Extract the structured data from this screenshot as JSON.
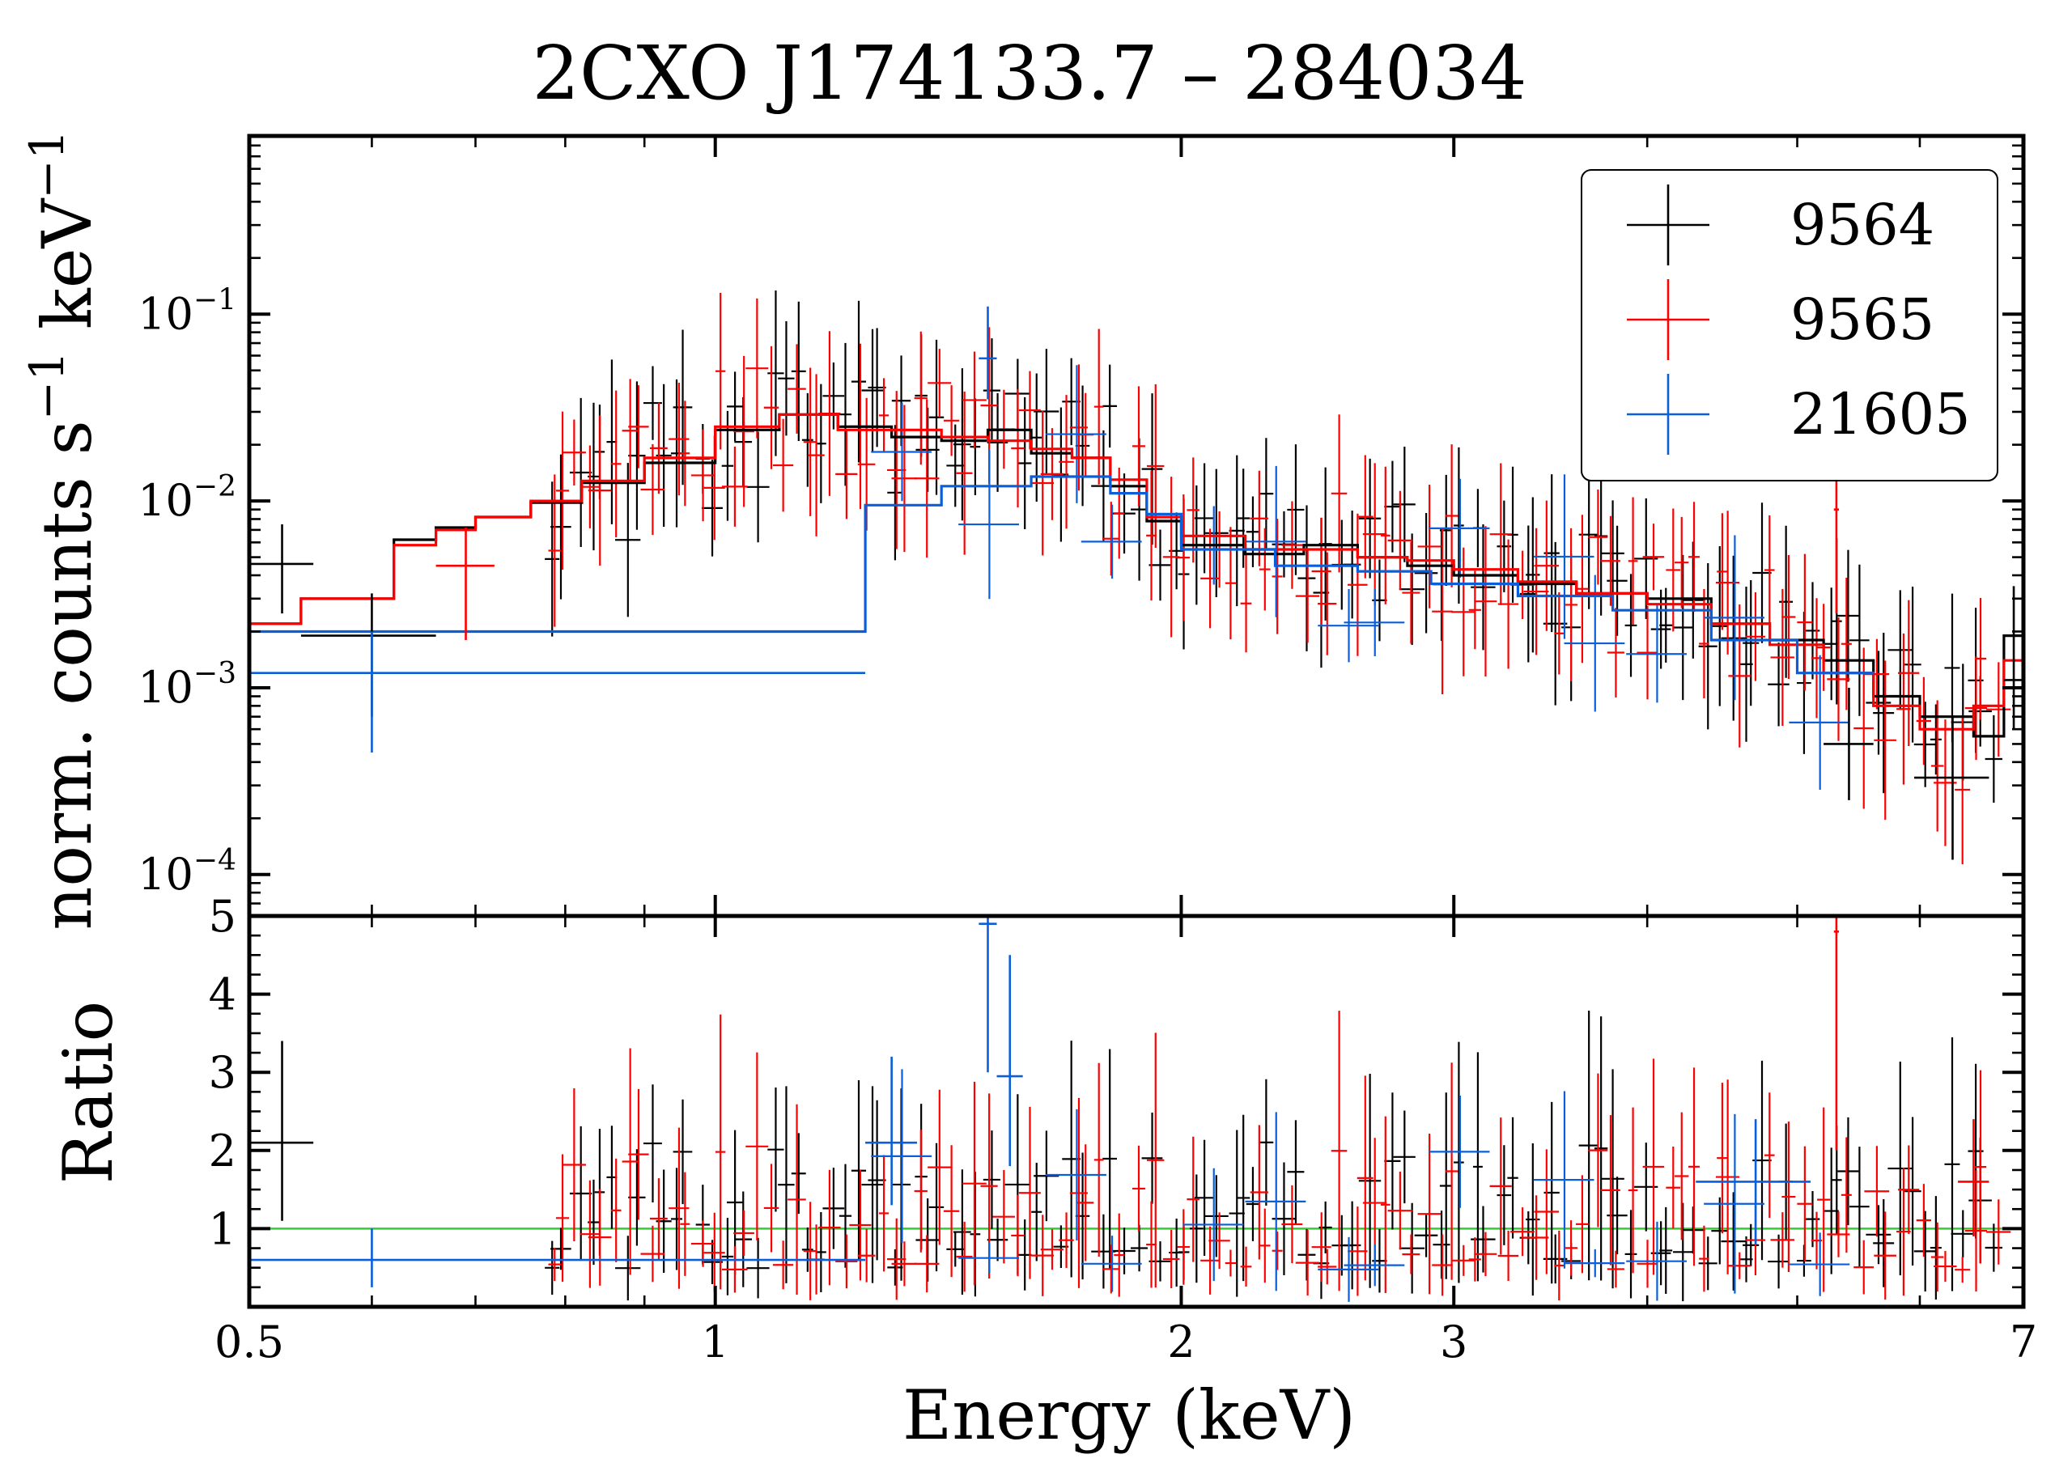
{
  "chart_data": {
    "type": "scatter",
    "title": "2CXO J174133.7 – 284034",
    "colors": {
      "9564": "#000000",
      "9565": "#ff0000",
      "21605": "#0a5fd8",
      "unity_line": "#33cc33"
    },
    "legend": {
      "placement": "top-right",
      "entries": [
        "9564",
        "9565",
        "21605"
      ]
    },
    "shared_x": {
      "label": "Energy (keV)",
      "scale": "log",
      "range": [
        0.5,
        7
      ],
      "ticks": [
        0.5,
        1,
        2,
        3,
        7
      ],
      "tick_labels": [
        "0.5",
        "1",
        "2",
        "3",
        "7"
      ]
    },
    "panels": [
      {
        "name": "spectrum",
        "ylabel_parts": [
          "norm. counts s",
          "−1",
          " keV",
          "−1"
        ],
        "yscale": "log",
        "ylim": [
          6e-05,
          0.9
        ],
        "yticks": [
          0.0001,
          0.001,
          0.01,
          0.1
        ],
        "ytick_labels": [
          {
            "base": "10",
            "exp": "−4"
          },
          {
            "base": "10",
            "exp": "−3"
          },
          {
            "base": "10",
            "exp": "−2"
          },
          {
            "base": "10",
            "exp": "−1"
          }
        ],
        "models": [
          {
            "name": "9564",
            "edges": [
              0.5,
              0.54,
              0.62,
              0.66,
              0.7,
              0.76,
              0.82,
              0.9,
              1.0,
              1.1,
              1.2,
              1.3,
              1.4,
              1.5,
              1.6,
              1.7,
              1.8,
              1.9,
              2.0,
              2.2,
              2.4,
              2.6,
              2.8,
              3.0,
              3.3,
              3.6,
              4.0,
              4.4,
              4.8,
              5.2,
              5.6,
              6.0,
              6.5,
              6.8,
              7.0
            ],
            "values": [
              0.0022,
              0.003,
              0.0062,
              0.0072,
              0.0082,
              0.0098,
              0.0125,
              0.016,
              0.024,
              0.029,
              0.025,
              0.022,
              0.021,
              0.024,
              0.018,
              0.017,
              0.012,
              0.0078,
              0.0058,
              0.0052,
              0.0058,
              0.005,
              0.0045,
              0.004,
              0.0036,
              0.0032,
              0.003,
              0.0022,
              0.0018,
              0.0014,
              0.0009,
              0.0007,
              0.00055,
              0.0019
            ]
          },
          {
            "name": "9565",
            "edges": [
              0.5,
              0.54,
              0.62,
              0.66,
              0.7,
              0.76,
              0.82,
              0.9,
              1.0,
              1.1,
              1.2,
              1.3,
              1.4,
              1.5,
              1.6,
              1.7,
              1.8,
              1.9,
              2.0,
              2.2,
              2.4,
              2.6,
              2.8,
              3.0,
              3.3,
              3.6,
              4.0,
              4.4,
              4.8,
              5.2,
              5.6,
              6.0,
              6.5,
              6.8,
              7.0
            ],
            "values": [
              0.0022,
              0.003,
              0.0058,
              0.007,
              0.0082,
              0.01,
              0.0128,
              0.017,
              0.025,
              0.029,
              0.024,
              0.024,
              0.022,
              0.021,
              0.019,
              0.017,
              0.013,
              0.0082,
              0.0065,
              0.0055,
              0.0055,
              0.005,
              0.0048,
              0.0043,
              0.0037,
              0.0032,
              0.0028,
              0.0022,
              0.0017,
              0.0012,
              0.0008,
              0.0006,
              0.0008,
              0.0014
            ]
          },
          {
            "name": "21605",
            "edges": [
              0.5,
              1.25,
              1.4,
              1.6,
              1.8,
              1.9,
              2.0,
              2.3,
              2.6,
              2.9,
              3.3,
              3.8,
              4.4,
              5.0,
              5.6
            ],
            "values": [
              0.002,
              0.0095,
              0.012,
              0.0135,
              0.011,
              0.0085,
              0.0055,
              0.0045,
              0.0042,
              0.0036,
              0.0031,
              0.0026,
              0.0018,
              0.0012
            ]
          }
        ],
        "highlighted_points": [
          {
            "series": "9564",
            "x": 0.525,
            "y": 0.0046,
            "xerr": 0.025,
            "ylo": 0.0025,
            "yhi": 0.0075
          },
          {
            "series": "9564",
            "x": 0.6,
            "y": 0.0019,
            "xerr": 0.06,
            "ylo": 0.0007,
            "yhi": 0.0032
          },
          {
            "series": "21605",
            "x": 0.6,
            "y": 0.0012,
            "xlo": 0.5,
            "xhi": 1.25,
            "ylo": 0.00045,
            "yhi": 0.002
          },
          {
            "series": "9565",
            "x": 0.69,
            "y": 0.0045,
            "xerr": 0.03,
            "ylo": 0.0018,
            "yhi": 0.0072
          },
          {
            "series": "21605",
            "x": 1.5,
            "y": 0.058,
            "xerr": 0.02,
            "ylo": 0.035,
            "yhi": 0.11
          },
          {
            "series": "9565",
            "x": 5.3,
            "y": 0.009,
            "xerr": 0.02,
            "ylo": 0.0025,
            "yhi": 0.03
          },
          {
            "series": "9564",
            "x": 5.4,
            "y": 0.0005,
            "xerr": 0.2,
            "ylo": 0.00025,
            "yhi": 0.001
          },
          {
            "series": "9564",
            "x": 6.3,
            "y": 0.00033,
            "xerr": 0.35,
            "ylo": 0.00012,
            "yhi": 0.0007
          },
          {
            "series": "9564",
            "x": 6.9,
            "y": 0.0011,
            "xerr": 0.1,
            "ylo": 0.0006,
            "yhi": 0.0035
          }
        ],
        "noisy_points_note": "Densely scattered binned counts for 9564 and 9565 follow their model steps with roughly ±50% errors; 21605 has fewer, wider bins."
      },
      {
        "name": "ratio",
        "ylabel": "Ratio",
        "yscale": "linear",
        "ylim": [
          0,
          5
        ],
        "yticks": [
          1,
          2,
          3,
          4,
          5
        ],
        "ytick_labels": [
          "1",
          "2",
          "3",
          "4",
          "5"
        ],
        "unity_line": 1.0,
        "highlighted_points": [
          {
            "series": "9564",
            "x": 0.525,
            "y": 2.1,
            "xerr": 0.025,
            "ylo": 1.1,
            "yhi": 3.4
          },
          {
            "series": "21605",
            "x": 0.6,
            "y": 0.6,
            "xlo": 0.5,
            "xhi": 1.25,
            "ylo": 0.25,
            "yhi": 1.0
          },
          {
            "series": "21605",
            "x": 1.5,
            "y": 4.9,
            "xerr": 0.02,
            "ylo": 3.0,
            "yhi": 5.0
          },
          {
            "series": "21605",
            "x": 1.55,
            "y": 2.95,
            "xerr": 0.03,
            "ylo": 1.8,
            "yhi": 4.5
          },
          {
            "series": "21605",
            "x": 1.3,
            "y": 2.1,
            "xerr": 0.05,
            "ylo": 1.3,
            "yhi": 3.2
          },
          {
            "series": "21605",
            "x": 4.7,
            "y": 1.6,
            "xerr": 0.4,
            "ylo": 0.8,
            "yhi": 2.4
          },
          {
            "series": "9565",
            "x": 5.3,
            "y": 4.8,
            "xerr": 0.02,
            "ylo": 2.0,
            "yhi": 5.0
          },
          {
            "series": "9565",
            "x": 6.5,
            "y": 1.6,
            "xerr": 0.15,
            "ylo": 0.9,
            "yhi": 2.4
          }
        ]
      }
    ]
  }
}
